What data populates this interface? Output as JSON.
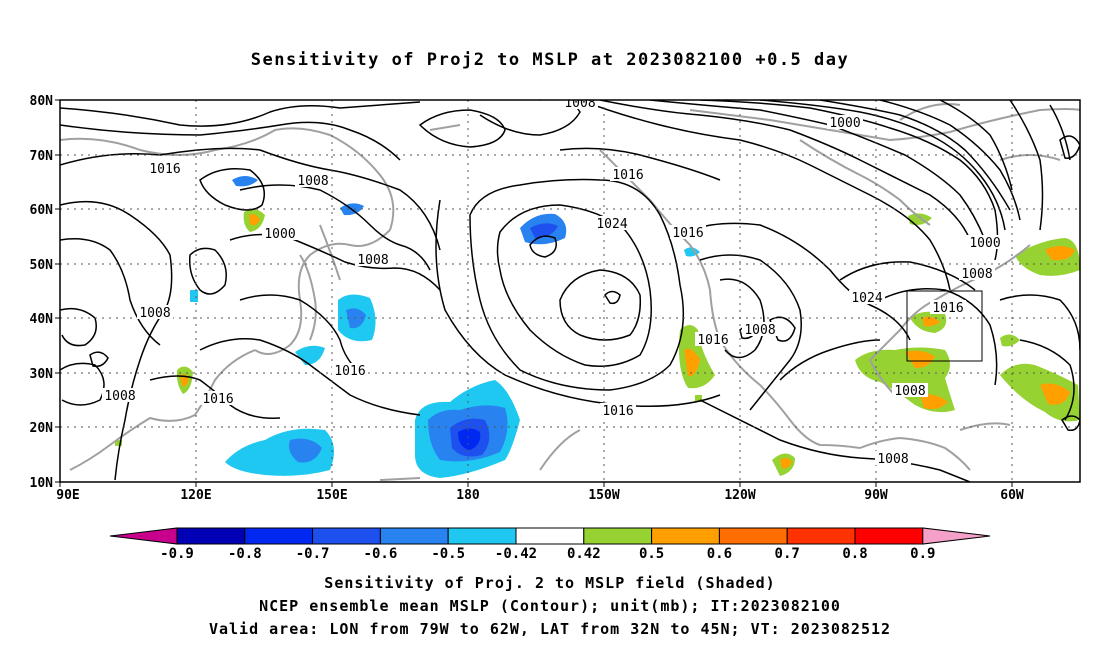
{
  "title": "Sensitivity of Proj2 to MSLP at 2023082100 +0.5 day",
  "map": {
    "lat_labels": [
      "80N",
      "70N",
      "60N",
      "50N",
      "40N",
      "30N",
      "20N",
      "10N"
    ],
    "lon_labels": [
      "90E",
      "120E",
      "150E",
      "180",
      "150W",
      "120W",
      "90W",
      "60W"
    ],
    "contour_labels": [
      "1008",
      "1000",
      "1016",
      "1008",
      "1000",
      "1008",
      "1016",
      "1024",
      "1016",
      "1000",
      "1008",
      "1024",
      "1016",
      "1008",
      "1016",
      "1016",
      "1016",
      "1008",
      "1008",
      "1008",
      "1016",
      "1008"
    ],
    "box_lon": [
      "79W",
      "62W"
    ],
    "box_lat": [
      "32N",
      "45N"
    ]
  },
  "colorbar": {
    "labels": [
      "-0.9",
      "-0.8",
      "-0.7",
      "-0.6",
      "-0.5",
      "-0.42",
      "0.42",
      "0.5",
      "0.6",
      "0.7",
      "0.8",
      "0.9"
    ],
    "colors": [
      "#0000b4",
      "#0028f0",
      "#1e50f0",
      "#2882f0",
      "#1ec8f0",
      "#ffffff",
      "#96d232",
      "#ffa000",
      "#ff6e00",
      "#ff3200",
      "#ff0000"
    ],
    "low_extend_color": "#c8008c",
    "high_extend_color": "#f5a0c8"
  },
  "captions": [
    "Sensitivity of Proj. 2 to MSLP field (Shaded)",
    "NCEP ensemble mean MSLP (Contour); unit(mb); IT:2023082100",
    "Valid area: LON from 79W to 62W, LAT from 32N to 45N; VT: 2023082512"
  ]
}
